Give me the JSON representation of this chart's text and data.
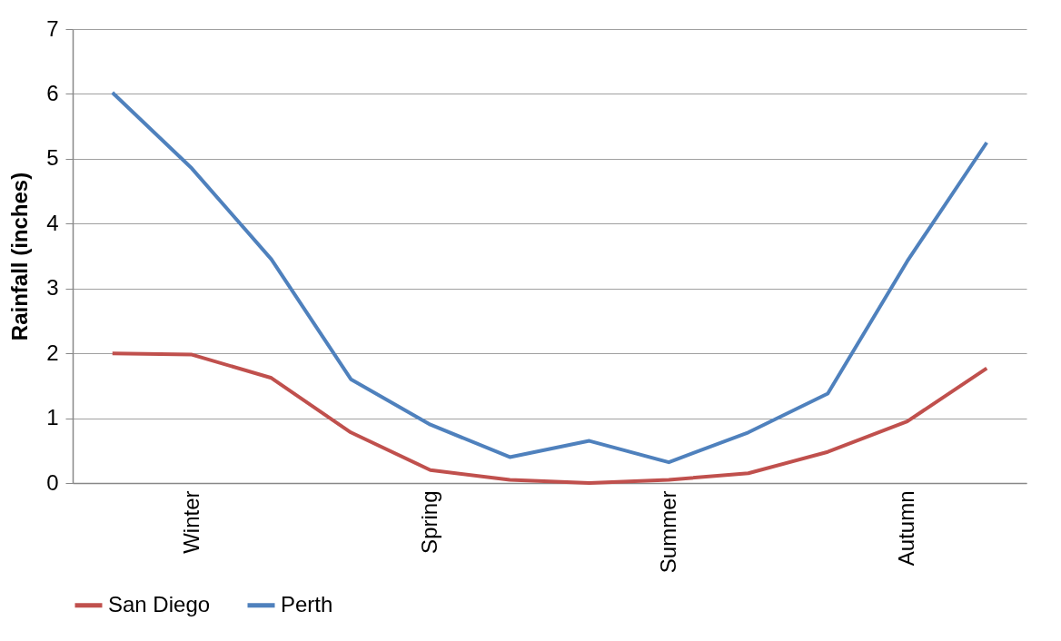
{
  "chart_data": {
    "type": "line",
    "ylabel": "Rainfall (inches)",
    "categories": [
      null,
      "Winter",
      null,
      null,
      "Spring",
      null,
      null,
      "Summer",
      null,
      null,
      "Autumn",
      null
    ],
    "series": [
      {
        "name": "San Diego",
        "color": "#c0504d",
        "values": [
          2.0,
          1.98,
          1.62,
          0.78,
          0.2,
          0.05,
          0.0,
          0.05,
          0.15,
          0.48,
          0.95,
          1.77
        ]
      },
      {
        "name": "Perth",
        "color": "#4f81bd",
        "values": [
          6.02,
          4.85,
          3.45,
          1.6,
          0.9,
          0.4,
          0.65,
          0.32,
          0.78,
          1.38,
          3.42,
          5.25
        ]
      }
    ],
    "ylim": [
      0,
      7
    ],
    "yticks": [
      0,
      1,
      2,
      3,
      4,
      5,
      6,
      7
    ],
    "grid": "y",
    "legend": "bottom",
    "marker": "none",
    "line_style": "solid"
  }
}
